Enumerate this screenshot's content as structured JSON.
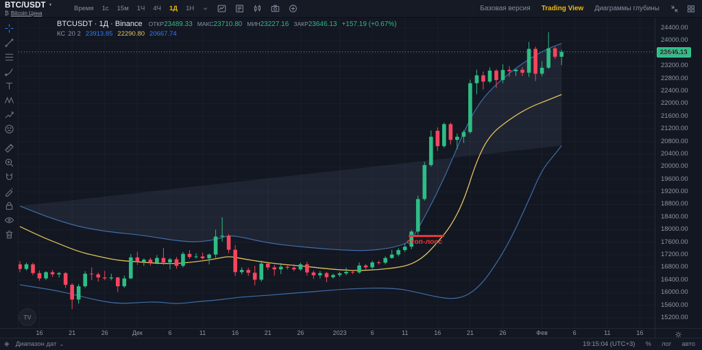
{
  "header": {
    "symbol": "BTC/USDT",
    "symbol_caret": "▾",
    "bitcoin_glyph": "₿",
    "symbol_link": "Bitcoin Цена",
    "time_label": "Время",
    "intervals": [
      "1с",
      "15м",
      "1Ч",
      "4Ч",
      "1Д",
      "1Н"
    ],
    "active_interval": "1Д",
    "toolbar_icons": [
      "interval-caret",
      "chart-style",
      "indicators",
      "compare-candles",
      "camera",
      "plus-circle"
    ],
    "right_links": [
      "Базовая версия",
      "Trading View",
      "Диаграммы глубины"
    ],
    "active_right_link": "Trading View",
    "right_icons": [
      "collapse",
      "grid"
    ]
  },
  "legend": {
    "title": "BTCUSDT · 1Д · Binance",
    "ohlc": [
      {
        "label": "ОТКР",
        "value": "23489.33"
      },
      {
        "label": "МАКС",
        "value": "23710.80"
      },
      {
        "label": "МИН",
        "value": "23227.16"
      },
      {
        "label": "ЗАКР",
        "value": "23646.13"
      }
    ],
    "change": "+157.19 (+0.67%)",
    "indicator": {
      "name": "КС",
      "params": "20 2",
      "values": [
        {
          "v": "23913.85",
          "color": "#3179f5"
        },
        {
          "v": "22290.80",
          "color": "#e3c35a"
        },
        {
          "v": "20667.74",
          "color": "#3179f5"
        }
      ]
    }
  },
  "sidebar": {
    "tools": [
      {
        "name": "crosshair-tool",
        "icon": "crosshair",
        "active": true
      },
      {
        "name": "trend-line-tool",
        "icon": "trend-line"
      },
      {
        "name": "fib-retracement-tool",
        "icon": "fib-retracement"
      },
      {
        "name": "brush-tool",
        "icon": "brush"
      },
      {
        "name": "text-tool",
        "icon": "text"
      },
      {
        "name": "xabcd-pattern-tool",
        "icon": "xabcd-pattern"
      },
      {
        "name": "forecast-tool",
        "icon": "forecast"
      },
      {
        "name": "emoji-tool",
        "icon": "emoji"
      },
      {
        "name": "measure-tool",
        "icon": "measure",
        "gap": true
      },
      {
        "name": "zoom-in-tool",
        "icon": "zoom-in"
      },
      {
        "name": "magnet-tool",
        "icon": "magnet"
      },
      {
        "name": "draw-tool",
        "icon": "pencil-ruler"
      },
      {
        "name": "lock-tool",
        "icon": "lock"
      },
      {
        "name": "eye-tool",
        "icon": "eye"
      },
      {
        "name": "trash-tool",
        "icon": "trash"
      }
    ]
  },
  "chart_data": {
    "type": "candlestick",
    "symbol": "BTCUSDT",
    "interval": "1Д",
    "exchange": "Binance",
    "last_price": 23646.13,
    "ylim": [
      14875,
      24750
    ],
    "grid": true,
    "price_ticks": [
      "24400.00",
      "24000.00",
      "23600.00",
      "23200.00",
      "22800.00",
      "22400.00",
      "22000.00",
      "21600.00",
      "21200.00",
      "20800.00",
      "20400.00",
      "20000.00",
      "19600.00",
      "19200.00",
      "18800.00",
      "18400.00",
      "18000.00",
      "17600.00",
      "17200.00",
      "16800.00",
      "16400.00",
      "16000.00",
      "15600.00",
      "15200.00"
    ],
    "x_ticks": [
      {
        "day": 3,
        "label": "16"
      },
      {
        "day": 8,
        "label": "21"
      },
      {
        "day": 13,
        "label": "26"
      },
      {
        "day": 18,
        "label": "Дек"
      },
      {
        "day": 23,
        "label": "6"
      },
      {
        "day": 28,
        "label": "11"
      },
      {
        "day": 33,
        "label": "16"
      },
      {
        "day": 38,
        "label": "21"
      },
      {
        "day": 43,
        "label": "26"
      },
      {
        "day": 49,
        "label": "2023"
      },
      {
        "day": 54,
        "label": "6"
      },
      {
        "day": 59,
        "label": "11"
      },
      {
        "day": 64,
        "label": "16"
      },
      {
        "day": 69,
        "label": "21"
      },
      {
        "day": 74,
        "label": "26"
      },
      {
        "day": 80,
        "label": "Фев"
      },
      {
        "day": 85,
        "label": "6"
      },
      {
        "day": 90,
        "label": "11"
      },
      {
        "day": 95,
        "label": "16"
      }
    ],
    "candles": [
      [
        16900,
        17000,
        16650,
        16750
      ],
      [
        16750,
        16950,
        16700,
        16900
      ],
      [
        16900,
        16950,
        16550,
        16620
      ],
      [
        16620,
        16700,
        16380,
        16450
      ],
      [
        16450,
        16680,
        16400,
        16650
      ],
      [
        16650,
        16720,
        16500,
        16580
      ],
      [
        16580,
        16660,
        16480,
        16620
      ],
      [
        16620,
        16650,
        16150,
        16250
      ],
      [
        16250,
        16300,
        15480,
        15780
      ],
      [
        15780,
        16270,
        15650,
        16200
      ],
      [
        16200,
        16680,
        16150,
        16600
      ],
      [
        16600,
        16800,
        16400,
        16580
      ],
      [
        16580,
        16640,
        16350,
        16480
      ],
      [
        16480,
        16690,
        16400,
        16450
      ],
      [
        16450,
        16600,
        16390,
        16480
      ],
      [
        16480,
        16500,
        16020,
        16200
      ],
      [
        16200,
        16540,
        16150,
        16450
      ],
      [
        16450,
        17230,
        16430,
        17120
      ],
      [
        17120,
        17300,
        16880,
        16980
      ],
      [
        16980,
        17090,
        16850,
        17050
      ],
      [
        17050,
        17110,
        16860,
        16950
      ],
      [
        16950,
        17190,
        16900,
        17100
      ],
      [
        17100,
        17420,
        16880,
        16960
      ],
      [
        16960,
        17100,
        16740,
        17060
      ],
      [
        17060,
        17130,
        16760,
        16850
      ],
      [
        16850,
        17290,
        16800,
        17230
      ],
      [
        17230,
        17350,
        17080,
        17130
      ],
      [
        17130,
        17250,
        17080,
        17150
      ],
      [
        17150,
        17270,
        17050,
        17090
      ],
      [
        17090,
        17240,
        16900,
        17210
      ],
      [
        17210,
        18000,
        17100,
        17780
      ],
      [
        17780,
        18390,
        17620,
        17810
      ],
      [
        17810,
        17860,
        17250,
        17360
      ],
      [
        17360,
        17510,
        16530,
        16650
      ],
      [
        16650,
        16800,
        16580,
        16720
      ],
      [
        16720,
        16790,
        16530,
        16630
      ],
      [
        16630,
        16850,
        16230,
        16410
      ],
      [
        16410,
        17020,
        16350,
        16920
      ],
      [
        16920,
        16960,
        16720,
        16800
      ],
      [
        16800,
        16880,
        16540,
        16740
      ],
      [
        16740,
        16940,
        16590,
        16820
      ],
      [
        16820,
        16860,
        16730,
        16790
      ],
      [
        16790,
        16900,
        16680,
        16740
      ],
      [
        16740,
        16950,
        16690,
        16900
      ],
      [
        16900,
        16980,
        16540,
        16640
      ],
      [
        16640,
        16700,
        16440,
        16550
      ],
      [
        16550,
        16690,
        16450,
        16620
      ],
      [
        16620,
        16660,
        16330,
        16490
      ],
      [
        16490,
        16600,
        16440,
        16560
      ],
      [
        16560,
        16660,
        16500,
        16610
      ],
      [
        16610,
        16790,
        16550,
        16660
      ],
      [
        16660,
        16710,
        16590,
        16640
      ],
      [
        16640,
        16960,
        16600,
        16860
      ],
      [
        16860,
        16910,
        16740,
        16800
      ],
      [
        16800,
        17010,
        16750,
        16960
      ],
      [
        16960,
        17010,
        16890,
        16950
      ],
      [
        16950,
        17150,
        16900,
        17100
      ],
      [
        17100,
        17360,
        17080,
        17210
      ],
      [
        17210,
        17410,
        17150,
        17350
      ],
      [
        17350,
        17570,
        17290,
        17460
      ],
      [
        17460,
        17990,
        17380,
        17940
      ],
      [
        17940,
        19080,
        17850,
        18970
      ],
      [
        18970,
        20150,
        18920,
        20050
      ],
      [
        20050,
        21150,
        20000,
        20950
      ],
      [
        21140,
        21250,
        20500,
        20650
      ],
      [
        20650,
        21400,
        20600,
        21350
      ],
      [
        21350,
        21400,
        20700,
        20850
      ],
      [
        20850,
        21050,
        20550,
        20950
      ],
      [
        20950,
        21160,
        20750,
        21100
      ],
      [
        21100,
        22760,
        21050,
        22650
      ],
      [
        22650,
        23080,
        22300,
        22900
      ],
      [
        22900,
        23020,
        22450,
        22700
      ],
      [
        22700,
        23150,
        22650,
        23050
      ],
      [
        23050,
        23100,
        22500,
        22750
      ],
      [
        22750,
        23250,
        22650,
        23070
      ],
      [
        23070,
        23190,
        22850,
        23030
      ],
      [
        23030,
        23100,
        22880,
        23080
      ],
      [
        23080,
        23160,
        22880,
        22980
      ],
      [
        22980,
        23960,
        22850,
        23740
      ],
      [
        23740,
        23810,
        22720,
        22950
      ],
      [
        22950,
        23350,
        22870,
        23140
      ],
      [
        23140,
        24270,
        23100,
        23755
      ],
      [
        23755,
        23810,
        23420,
        23490
      ],
      [
        23489.33,
        23710.8,
        23227.16,
        23646.13
      ]
    ],
    "keltner": {
      "name": "КС",
      "length": 20,
      "mult": 2,
      "upper": [
        [
          0,
          18750
        ],
        [
          3,
          18500
        ],
        [
          6,
          18280
        ],
        [
          9,
          18100
        ],
        [
          12,
          17980
        ],
        [
          15,
          17900
        ],
        [
          18,
          17840
        ],
        [
          21,
          17750
        ],
        [
          24,
          17650
        ],
        [
          27,
          17600
        ],
        [
          30,
          17680
        ],
        [
          32,
          17820
        ],
        [
          34,
          17760
        ],
        [
          37,
          17620
        ],
        [
          40,
          17520
        ],
        [
          43,
          17460
        ],
        [
          46,
          17400
        ],
        [
          49,
          17360
        ],
        [
          52,
          17330
        ],
        [
          55,
          17360
        ],
        [
          58,
          17470
        ],
        [
          60,
          17650
        ],
        [
          62,
          18400
        ],
        [
          64,
          19200
        ],
        [
          66,
          20100
        ],
        [
          68,
          21100
        ],
        [
          70,
          21900
        ],
        [
          72,
          22420
        ],
        [
          75,
          22980
        ],
        [
          78,
          23420
        ],
        [
          81,
          23760
        ],
        [
          83,
          23913.85
        ]
      ],
      "middle": [
        [
          0,
          18100
        ],
        [
          3,
          17800
        ],
        [
          6,
          17550
        ],
        [
          9,
          17300
        ],
        [
          12,
          17150
        ],
        [
          15,
          17020
        ],
        [
          18,
          16980
        ],
        [
          21,
          16930
        ],
        [
          24,
          16920
        ],
        [
          27,
          16980
        ],
        [
          30,
          17070
        ],
        [
          32,
          17160
        ],
        [
          34,
          17080
        ],
        [
          37,
          16980
        ],
        [
          40,
          16900
        ],
        [
          43,
          16850
        ],
        [
          46,
          16780
        ],
        [
          49,
          16720
        ],
        [
          52,
          16700
        ],
        [
          55,
          16730
        ],
        [
          58,
          16800
        ],
        [
          60,
          16900
        ],
        [
          62,
          17150
        ],
        [
          64,
          17600
        ],
        [
          66,
          18100
        ],
        [
          68,
          18900
        ],
        [
          70,
          20200
        ],
        [
          72,
          21000
        ],
        [
          75,
          21500
        ],
        [
          78,
          21880
        ],
        [
          81,
          22120
        ],
        [
          83,
          22290.8
        ]
      ],
      "lower": [
        [
          0,
          16250
        ],
        [
          3,
          16150
        ],
        [
          6,
          16050
        ],
        [
          9,
          15900
        ],
        [
          12,
          15750
        ],
        [
          15,
          15650
        ],
        [
          18,
          15680
        ],
        [
          21,
          15710
        ],
        [
          24,
          15640
        ],
        [
          27,
          15710
        ],
        [
          30,
          15760
        ],
        [
          32,
          15810
        ],
        [
          34,
          15860
        ],
        [
          37,
          15900
        ],
        [
          40,
          15950
        ],
        [
          43,
          16000
        ],
        [
          46,
          16050
        ],
        [
          49,
          16100
        ],
        [
          52,
          16130
        ],
        [
          55,
          16150
        ],
        [
          58,
          16120
        ],
        [
          60,
          16050
        ],
        [
          62,
          15950
        ],
        [
          64,
          15860
        ],
        [
          66,
          15800
        ],
        [
          68,
          15860
        ],
        [
          70,
          16120
        ],
        [
          72,
          16600
        ],
        [
          75,
          17600
        ],
        [
          78,
          18950
        ],
        [
          80,
          19900
        ],
        [
          82,
          20400
        ],
        [
          83,
          20667.74
        ]
      ]
    },
    "annotations": [
      {
        "type": "horizontal-segment",
        "text": "стоп-лосс",
        "price": 17800,
        "day_start": 59.6,
        "day_end": 65.0,
        "color": "#e53935"
      }
    ],
    "colors": {
      "up": "#2ebd85",
      "down": "#f6465d",
      "kc_middle": "#e3c35a",
      "kc_band": "#3f6ea8",
      "kc_fill": "rgba(135,160,200,0.10)",
      "last_price_line": "#2ebd85",
      "grid": "rgba(150,160,190,0.055)"
    },
    "watermark": "TV"
  },
  "price_axis": {
    "last_price_label": "23646.13"
  },
  "footer": {
    "left_icon": "◈",
    "date_range_label": "Диапазон дат",
    "caret": "⌄",
    "clock": "19:15:04 (UTC+3)",
    "percent": "%",
    "log": "лог",
    "auto": "авто"
  }
}
